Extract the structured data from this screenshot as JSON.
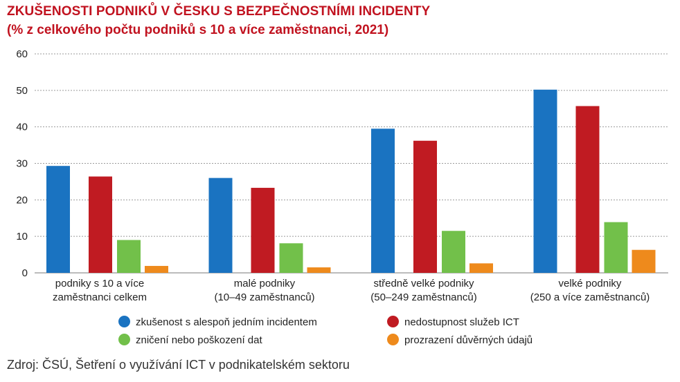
{
  "chart_data": {
    "type": "bar",
    "title": "ZKUŠENOSTI PODNIKŮ V ČESKU S BEZPEČNOSTNÍMI INCIDENTY",
    "subtitle": "(% z celkového počtu podniků s 10 a více zaměstnanci, 2021)",
    "xlabel": "",
    "ylabel": "",
    "ylim": [
      0,
      60
    ],
    "yticks": [
      0,
      10,
      20,
      30,
      40,
      50,
      60
    ],
    "grid": true,
    "legend_position": "bottom",
    "categories": [
      [
        "podniky s 10 a více",
        "zaměstnanci celkem"
      ],
      [
        "malé podniky",
        "(10–49 zaměstnanců)"
      ],
      [
        "středně velké podniky",
        "(50–249 zaměstnanců)"
      ],
      [
        "velké podniky",
        "(250 a více zaměstnanců)"
      ]
    ],
    "series": [
      {
        "name": "zkušenost s alespoň jedním incidentem",
        "color": "#1a73c1",
        "values": [
          29.3,
          26.0,
          39.5,
          50.2
        ]
      },
      {
        "name": "nedostupnost služeb ICT",
        "color": "#c01b22",
        "values": [
          26.4,
          23.3,
          36.2,
          45.7
        ]
      },
      {
        "name": "zničení nebo poškození dat",
        "color": "#72c04a",
        "values": [
          9.0,
          8.1,
          11.5,
          13.9
        ]
      },
      {
        "name": "prozrazení důvěrných údajů",
        "color": "#ee8a1c",
        "values": [
          1.9,
          1.5,
          2.6,
          6.3
        ]
      }
    ]
  },
  "source": "Zdroj: ČSÚ, Šetření o využívání ICT v podnikatelském sektoru"
}
